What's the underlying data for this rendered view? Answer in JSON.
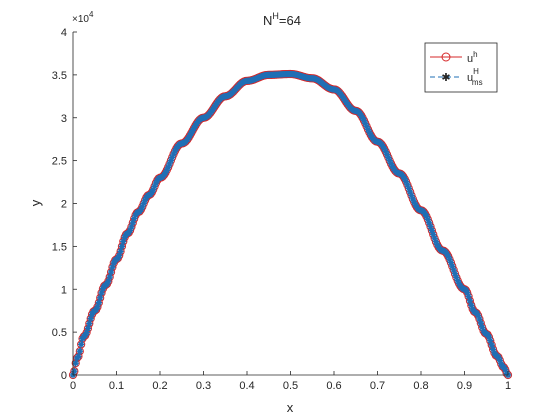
{
  "chart_data": {
    "type": "line",
    "title_base": "N",
    "title_sup": "H",
    "title_rest": "=64",
    "xlabel": "x",
    "ylabel": "y",
    "xlim": [
      0,
      1
    ],
    "ylim": [
      0,
      40000
    ],
    "y_exponent": "4",
    "y_exponent_prefix": "×10",
    "xticks": [
      0,
      0.1,
      0.2,
      0.3,
      0.4,
      0.5,
      0.6,
      0.7,
      0.8,
      0.9,
      1
    ],
    "xtick_labels": [
      "0",
      "0.1",
      "0.2",
      "0.3",
      "0.4",
      "0.5",
      "0.6",
      "0.7",
      "0.8",
      "0.9",
      "1"
    ],
    "yticks": [
      0,
      5000,
      10000,
      15000,
      20000,
      25000,
      30000,
      35000,
      40000
    ],
    "ytick_labels": [
      "0",
      "0.5",
      "1",
      "1.5",
      "2",
      "2.5",
      "3",
      "3.5",
      "4"
    ],
    "grid": false,
    "legend_position": "top-right",
    "curve_x": [
      0,
      0.01,
      0.025,
      0.05,
      0.075,
      0.1,
      0.125,
      0.15,
      0.175,
      0.2,
      0.25,
      0.3,
      0.35,
      0.4,
      0.45,
      0.5,
      0.55,
      0.6,
      0.65,
      0.7,
      0.75,
      0.8,
      0.85,
      0.9,
      0.925,
      0.95,
      0.975,
      0.99,
      1
    ],
    "curve_y": [
      0,
      2000,
      4500,
      7500,
      10500,
      13500,
      16500,
      19000,
      21000,
      23000,
      27000,
      30000,
      32500,
      34300,
      35000,
      35100,
      34600,
      33300,
      30800,
      27200,
      23500,
      19200,
      14500,
      10000,
      7300,
      4800,
      2200,
      900,
      0
    ],
    "series": [
      {
        "name": "u",
        "sup": "h",
        "sub": "",
        "color": "#d62728",
        "marker": "circle",
        "linestyle": "solid"
      },
      {
        "name": "u",
        "sup": "H",
        "sub": "ms",
        "color": "#1f6fb5",
        "marker": "asterisk",
        "linestyle": "dashed"
      }
    ]
  }
}
